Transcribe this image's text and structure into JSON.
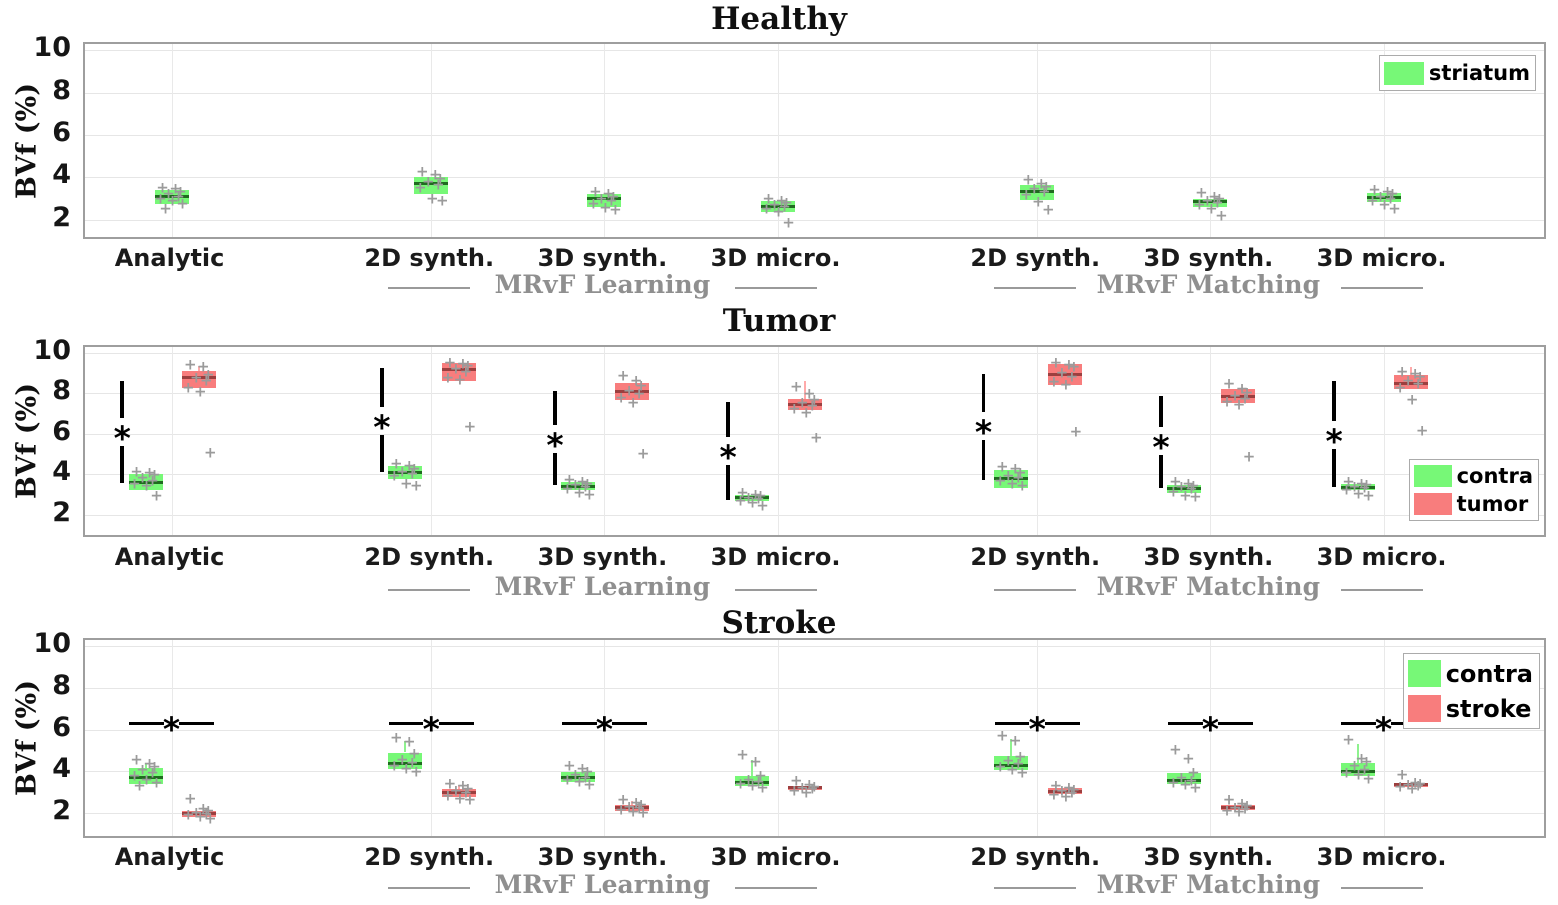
{
  "chart_data": {
    "type": "boxplot",
    "ylabel": "BVf (%)",
    "yticks": [
      2,
      4,
      6,
      8,
      10
    ],
    "xlim": [
      0.5,
      8.95
    ],
    "categories": [
      "Analytic",
      "2D synth.",
      "3D synth.",
      "3D micro.",
      "2D synth.",
      "3D synth.",
      "3D micro."
    ],
    "cat_positions": [
      1,
      2.5,
      3.5,
      4.5,
      6,
      7,
      8
    ],
    "group_labels": [
      {
        "text": "MRvF Learning",
        "center_cat": 2,
        "line_cats": [
          1,
          3
        ]
      },
      {
        "text": "MRvF Matching",
        "center_cat": 5,
        "line_cats": [
          4,
          6
        ]
      }
    ],
    "colors": {
      "green": "#77f877",
      "red": "#f87d7d",
      "green_median": "#1f6b1f",
      "red_median": "#9c3f3f",
      "green_whisker": "#8ef28e",
      "red_whisker": "#ffaaaa",
      "points": "#9b9b9b",
      "significance": "#000000",
      "group_label": "#8f8f8f"
    },
    "panels": [
      {
        "title": "Healthy",
        "ylim": [
          1.0,
          10.3
        ],
        "legend": {
          "pos": "top-right",
          "entries": [
            {
              "label": "striatum",
              "color": "#77f877"
            }
          ]
        },
        "series": [
          {
            "name": "striatum",
            "color": "#77f877",
            "median_color": "#1f6b1f",
            "whisker_color": "#8ef28e",
            "offset": 0,
            "boxes": [
              {
                "q1": 2.75,
                "med": 3.1,
                "q3": 3.4,
                "points": [
                  3.5,
                  3.45,
                  3.3,
                  3.2,
                  3.1,
                  3.0,
                  2.9,
                  2.75,
                  2.5
                ]
              },
              {
                "q1": 3.2,
                "med": 3.7,
                "q3": 4.0,
                "points": [
                  4.25,
                  4.1,
                  3.95,
                  3.8,
                  3.65,
                  3.5,
                  3.0,
                  2.9
                ]
              },
              {
                "q1": 2.6,
                "med": 3.0,
                "q3": 3.2,
                "points": [
                  3.3,
                  3.2,
                  3.1,
                  3.0,
                  2.9,
                  2.75,
                  2.55,
                  2.45
                ]
              },
              {
                "q1": 2.35,
                "med": 2.65,
                "q3": 2.9,
                "points": [
                  3.0,
                  2.9,
                  2.8,
                  2.7,
                  2.6,
                  2.5,
                  2.35,
                  1.85
                ]
              },
              {
                "q1": 2.95,
                "med": 3.35,
                "q3": 3.65,
                "points": [
                  3.9,
                  3.7,
                  3.55,
                  3.45,
                  3.3,
                  3.15,
                  2.85,
                  2.45
                ]
              },
              {
                "q1": 2.6,
                "med": 2.85,
                "q3": 3.0,
                "points": [
                  3.25,
                  3.1,
                  3.0,
                  2.9,
                  2.8,
                  2.7,
                  2.5,
                  2.2
                ]
              },
              {
                "q1": 2.85,
                "med": 3.05,
                "q3": 3.25,
                "points": [
                  3.4,
                  3.3,
                  3.2,
                  3.1,
                  3.0,
                  2.9,
                  2.7,
                  2.5
                ]
              }
            ]
          }
        ],
        "sig": []
      },
      {
        "title": "Tumor",
        "ylim": [
          0.8,
          10.3
        ],
        "legend": {
          "pos": "bottom-right",
          "entries": [
            {
              "label": "contra",
              "color": "#77f877"
            },
            {
              "label": "tumor",
              "color": "#f87d7d"
            }
          ]
        },
        "series": [
          {
            "name": "contra",
            "color": "#77f877",
            "median_color": "#1f6b1f",
            "whisker_color": "#8ef28e",
            "offset": -0.15,
            "boxes": [
              {
                "q1": 3.2,
                "med": 3.6,
                "q3": 4.0,
                "points": [
                  4.1,
                  4.05,
                  3.95,
                  3.8,
                  3.65,
                  3.5,
                  3.4,
                  2.95
                ]
              },
              {
                "q1": 3.75,
                "med": 4.1,
                "q3": 4.4,
                "points": [
                  4.5,
                  4.4,
                  4.25,
                  4.1,
                  4.0,
                  3.9,
                  3.5,
                  3.4
                ]
              },
              {
                "q1": 3.2,
                "med": 3.4,
                "q3": 3.6,
                "points": [
                  3.7,
                  3.6,
                  3.5,
                  3.45,
                  3.35,
                  3.25,
                  3.1,
                  3.0
                ]
              },
              {
                "q1": 2.7,
                "med": 2.85,
                "q3": 3.0,
                "points": [
                  3.1,
                  3.0,
                  2.95,
                  2.85,
                  2.8,
                  2.7,
                  2.6,
                  2.45
                ]
              },
              {
                "q1": 3.3,
                "med": 3.8,
                "q3": 4.2,
                "points": [
                  4.35,
                  4.25,
                  4.05,
                  3.9,
                  3.8,
                  3.65,
                  3.5,
                  3.4
                ]
              },
              {
                "q1": 3.1,
                "med": 3.3,
                "q3": 3.45,
                "points": [
                  3.6,
                  3.5,
                  3.4,
                  3.35,
                  3.25,
                  3.15,
                  2.95,
                  2.9
                ]
              },
              {
                "q1": 3.2,
                "med": 3.35,
                "q3": 3.5,
                "points": [
                  3.6,
                  3.5,
                  3.45,
                  3.35,
                  3.3,
                  3.2,
                  3.05,
                  2.95
                ]
              }
            ]
          },
          {
            "name": "tumor",
            "color": "#f87d7d",
            "median_color": "#9c3f3f",
            "whisker_color": "#ffaaaa",
            "offset": 0.16,
            "boxes": [
              {
                "q1": 8.25,
                "med": 8.8,
                "q3": 9.1,
                "hi": 9.35,
                "points": [
                  9.4,
                  9.3,
                  8.9,
                  8.75,
                  8.6,
                  8.25,
                  8.05,
                  5.05
                ]
              },
              {
                "q1": 8.6,
                "med": 9.2,
                "q3": 9.5,
                "points": [
                  9.5,
                  9.45,
                  9.35,
                  9.2,
                  9.05,
                  8.75,
                  8.65,
                  6.35
                ]
              },
              {
                "q1": 7.7,
                "med": 8.1,
                "q3": 8.5,
                "points": [
                  8.85,
                  8.6,
                  8.35,
                  8.1,
                  7.95,
                  7.8,
                  7.55,
                  5.0
                ]
              },
              {
                "q1": 7.2,
                "med": 7.45,
                "q3": 7.75,
                "hi": 8.6,
                "points": [
                  8.3,
                  7.95,
                  7.7,
                  7.55,
                  7.4,
                  7.25,
                  7.05,
                  5.8
                ]
              },
              {
                "q1": 8.4,
                "med": 8.95,
                "q3": 9.45,
                "points": [
                  9.5,
                  9.4,
                  9.3,
                  9.0,
                  8.8,
                  8.55,
                  8.4,
                  6.1
                ]
              },
              {
                "q1": 7.55,
                "med": 7.85,
                "q3": 8.2,
                "points": [
                  8.45,
                  8.2,
                  8.0,
                  7.9,
                  7.75,
                  7.6,
                  7.45,
                  4.85
                ]
              },
              {
                "q1": 8.2,
                "med": 8.5,
                "q3": 8.9,
                "hi": 9.3,
                "points": [
                  9.05,
                  8.95,
                  8.8,
                  8.6,
                  8.45,
                  8.25,
                  7.7,
                  6.15
                ]
              }
            ]
          }
        ],
        "sig": [
          {
            "type": "vline",
            "cat": 0,
            "x_off": -0.285,
            "lo": 3.55,
            "hi": 8.6,
            "ast": 6.1
          },
          {
            "type": "vline",
            "cat": 1,
            "x_off": -0.285,
            "lo": 4.1,
            "hi": 9.25,
            "ast": 6.65
          },
          {
            "type": "vline",
            "cat": 2,
            "x_off": -0.285,
            "lo": 3.45,
            "hi": 8.1,
            "ast": 5.75
          },
          {
            "type": "vline",
            "cat": 3,
            "x_off": -0.285,
            "lo": 2.75,
            "hi": 7.6,
            "ast": 5.15
          },
          {
            "type": "vline",
            "cat": 4,
            "x_off": -0.31,
            "lo": 3.7,
            "hi": 8.95,
            "ast": 6.4
          },
          {
            "type": "vline",
            "cat": 5,
            "x_off": -0.285,
            "lo": 3.3,
            "hi": 7.9,
            "ast": 5.65
          },
          {
            "type": "vline",
            "cat": 6,
            "x_off": -0.285,
            "lo": 3.35,
            "hi": 8.6,
            "ast": 5.95
          }
        ]
      },
      {
        "title": "Stroke",
        "ylim": [
          0.7,
          10.3
        ],
        "legend": {
          "pos": "top-right",
          "entries": [
            {
              "label": "contra",
              "color": "#77f877"
            },
            {
              "label": "stroke",
              "color": "#f87d7d"
            }
          ]
        },
        "series": [
          {
            "name": "contra",
            "color": "#77f877",
            "median_color": "#1f6b1f",
            "whisker_color": "#8ef28e",
            "offset": -0.15,
            "boxes": [
              {
                "q1": 3.4,
                "med": 3.7,
                "q3": 4.15,
                "hi": 4.4,
                "points": [
                  4.55,
                  4.35,
                  4.2,
                  4.05,
                  3.9,
                  3.75,
                  3.6,
                  3.45,
                  3.3
                ]
              },
              {
                "q1": 4.1,
                "med": 4.35,
                "q3": 4.9,
                "hi": 5.45,
                "points": [
                  5.6,
                  5.4,
                  4.85,
                  4.55,
                  4.4,
                  4.25,
                  4.1,
                  3.95
                ]
              },
              {
                "q1": 3.5,
                "med": 3.7,
                "q3": 3.95,
                "points": [
                  4.25,
                  4.1,
                  3.95,
                  3.8,
                  3.7,
                  3.6,
                  3.5,
                  3.35
                ]
              },
              {
                "q1": 3.3,
                "med": 3.45,
                "q3": 3.75,
                "hi": 4.55,
                "points": [
                  4.8,
                  4.45,
                  3.75,
                  3.6,
                  3.5,
                  3.4,
                  3.3,
                  3.2
                ]
              },
              {
                "q1": 4.05,
                "med": 4.3,
                "q3": 4.75,
                "hi": 5.55,
                "points": [
                  5.7,
                  5.45,
                  4.7,
                  4.5,
                  4.35,
                  4.2,
                  4.05,
                  3.9
                ]
              },
              {
                "q1": 3.4,
                "med": 3.55,
                "q3": 3.9,
                "points": [
                  5.0,
                  4.6,
                  3.9,
                  3.7,
                  3.55,
                  3.45,
                  3.35,
                  3.2
                ]
              },
              {
                "q1": 3.75,
                "med": 4.0,
                "q3": 4.4,
                "hi": 5.3,
                "points": [
                  5.5,
                  4.6,
                  4.45,
                  4.25,
                  4.05,
                  3.9,
                  3.8,
                  3.65
                ]
              }
            ]
          },
          {
            "name": "stroke",
            "color": "#f87d7d",
            "median_color": "#9c3f3f",
            "whisker_color": "#ffaaaa",
            "offset": 0.16,
            "boxes": [
              {
                "q1": 1.8,
                "med": 1.95,
                "q3": 2.1,
                "points": [
                  2.65,
                  2.2,
                  2.1,
                  2.0,
                  1.95,
                  1.9,
                  1.8,
                  1.7
                ]
              },
              {
                "q1": 2.75,
                "med": 3.0,
                "q3": 3.15,
                "hi": 3.35,
                "points": [
                  3.4,
                  3.3,
                  3.15,
                  3.05,
                  2.95,
                  2.8,
                  2.65,
                  2.6
                ]
              },
              {
                "q1": 2.1,
                "med": 2.25,
                "q3": 2.4,
                "hi": 2.55,
                "points": [
                  2.6,
                  2.5,
                  2.4,
                  2.3,
                  2.25,
                  2.15,
                  2.05,
                  2.0
                ]
              },
              {
                "q1": 3.1,
                "med": 3.2,
                "q3": 3.3,
                "points": [
                  3.55,
                  3.35,
                  3.25,
                  3.2,
                  3.15,
                  3.05,
                  2.95
                ]
              },
              {
                "q1": 2.9,
                "med": 3.05,
                "q3": 3.2,
                "points": [
                  3.3,
                  3.2,
                  3.1,
                  3.05,
                  2.95,
                  2.85,
                  2.75
                ]
              },
              {
                "q1": 2.15,
                "med": 2.25,
                "q3": 2.4,
                "points": [
                  2.6,
                  2.45,
                  2.35,
                  2.25,
                  2.2,
                  2.1,
                  2.05
                ]
              },
              {
                "q1": 3.25,
                "med": 3.35,
                "q3": 3.45,
                "points": [
                  3.8,
                  3.45,
                  3.4,
                  3.35,
                  3.3,
                  3.25,
                  3.15
                ]
              }
            ]
          }
        ],
        "sig": [
          {
            "type": "hline",
            "cat": 0,
            "y": 6.3
          },
          {
            "type": "hline",
            "cat": 1,
            "y": 6.3
          },
          {
            "type": "hline",
            "cat": 2,
            "y": 6.3
          },
          {
            "type": "hline",
            "cat": 4,
            "y": 6.3
          },
          {
            "type": "hline",
            "cat": 5,
            "y": 6.3
          },
          {
            "type": "hline",
            "cat": 6,
            "y": 6.3
          }
        ]
      }
    ]
  }
}
